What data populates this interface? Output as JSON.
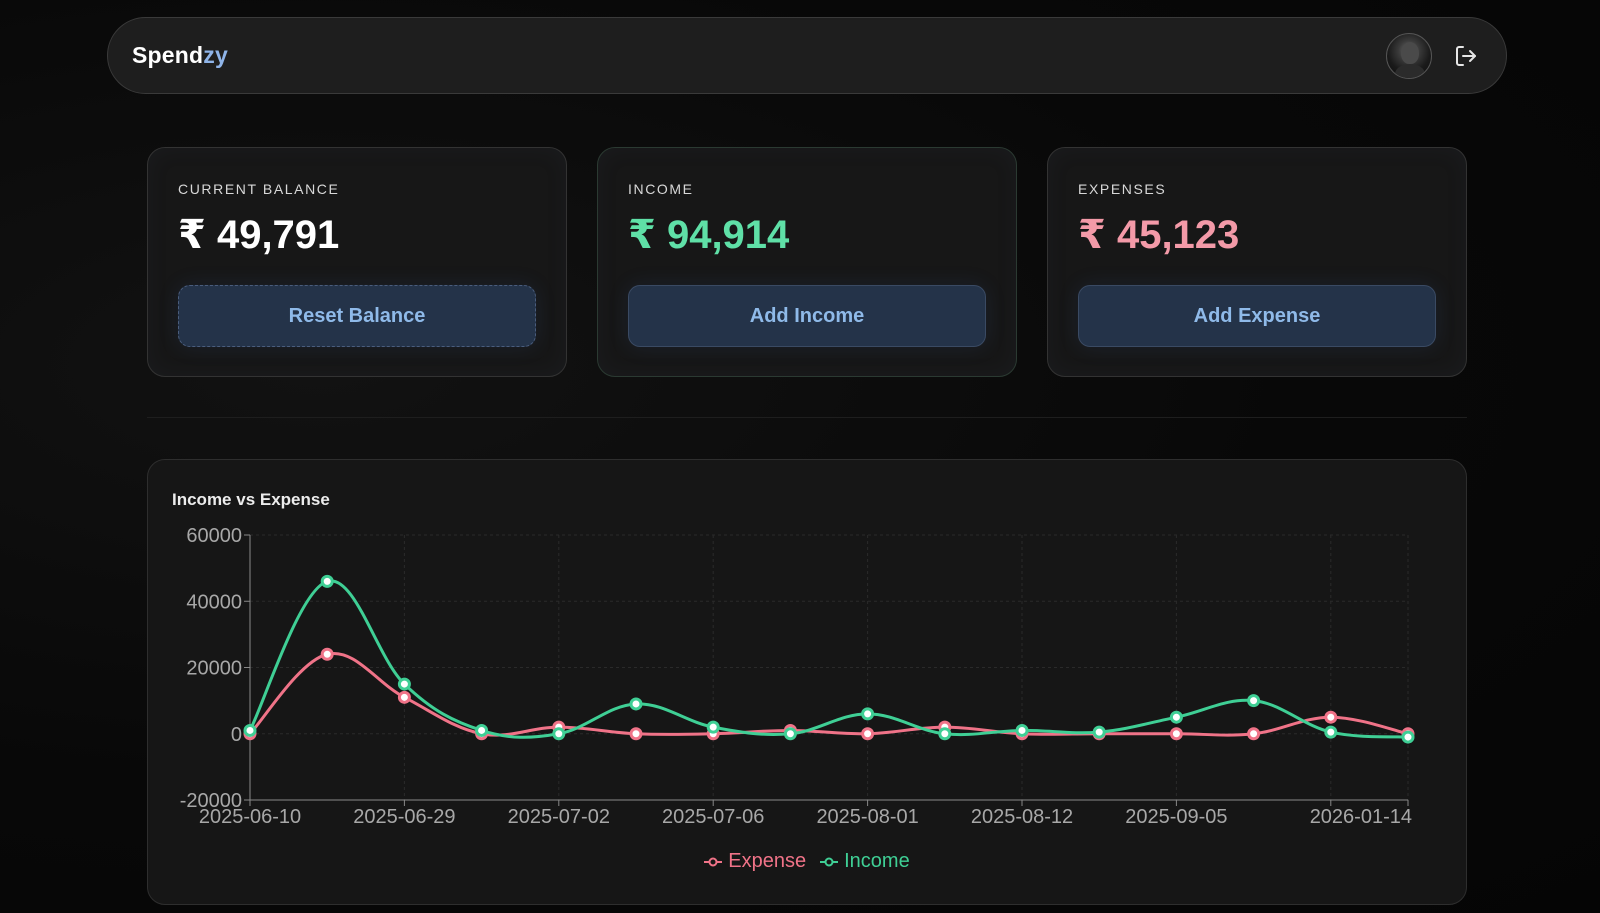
{
  "app": {
    "brand_main": "Spend",
    "brand_accent": "zy"
  },
  "header": {
    "avatar_icon": "user-avatar",
    "logout_icon": "logout-icon"
  },
  "cards": {
    "balance": {
      "label": "CURRENT BALANCE",
      "value": "₹ 49,791",
      "button": "Reset Balance"
    },
    "income": {
      "label": "INCOME",
      "value": "₹ 94,914",
      "button": "Add Income"
    },
    "expense": {
      "label": "EXPENSES",
      "value": "₹ 45,123",
      "button": "Add Expense"
    }
  },
  "colors": {
    "income": "#3fcf95",
    "expense": "#f07388",
    "accent": "#8fb4e8"
  },
  "chart_data": {
    "type": "line",
    "title": "Income vs Expense",
    "xlabel": "",
    "ylabel": "",
    "ylim": [
      -20000,
      60000
    ],
    "yticks": [
      "60000",
      "40000",
      "20000",
      "0",
      "-20000"
    ],
    "x": [
      "2025-06-10",
      "",
      "2025-06-29",
      "",
      "2025-07-02",
      "",
      "2025-07-06",
      "",
      "2025-08-01",
      "",
      "2025-08-12",
      "",
      "2025-09-05",
      "",
      "",
      "2026-01-14"
    ],
    "xtick_labels": [
      "2025-06-10",
      "2025-06-29",
      "2025-07-02",
      "2025-07-06",
      "2025-08-01",
      "2025-08-12",
      "2025-09-05",
      "2026-01-14"
    ],
    "grid": true,
    "legend_position": "bottom",
    "series": [
      {
        "name": "Expense",
        "color": "#f07388",
        "values": [
          0,
          24000,
          11000,
          0,
          2000,
          0,
          0,
          1000,
          0,
          2000,
          0,
          0,
          0,
          0,
          5000,
          0
        ]
      },
      {
        "name": "Income",
        "color": "#3fcf95",
        "values": [
          1000,
          46000,
          15000,
          1000,
          0,
          9000,
          2000,
          0,
          6000,
          0,
          1000,
          500,
          5000,
          10000,
          500,
          -1000
        ]
      }
    ]
  }
}
